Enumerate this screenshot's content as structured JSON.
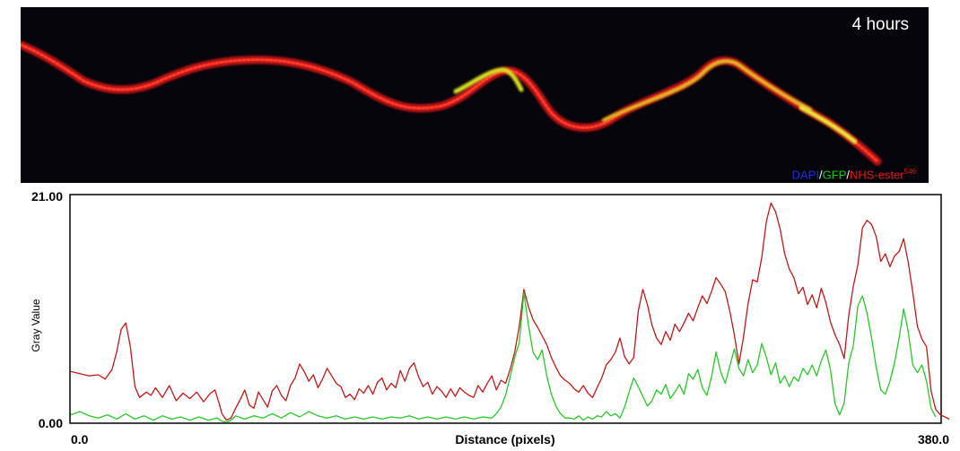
{
  "micrograph": {
    "timepoint_label": "4 hours",
    "legend": {
      "dapi": "DAPI",
      "gfp": "GFP",
      "nhs": "NHS-ester",
      "nhs_sup": "546",
      "sep": "/",
      "dapi_color": "#1c2ed6",
      "gfp_color": "#19c419",
      "nhs_color": "#e81818"
    }
  },
  "chart_data": {
    "type": "line",
    "xlabel": "Distance (pixels)",
    "ylabel": "Gray Value",
    "xlim": [
      0,
      380
    ],
    "ylim": [
      0,
      21
    ],
    "x_tick_labels": [
      "0.0",
      "380.0"
    ],
    "y_tick_labels": [
      "0.00",
      "21.00"
    ],
    "grid": false,
    "series": [
      {
        "color": "#c01818",
        "points": [
          [
            0,
            4.7
          ],
          [
            4,
            4.5
          ],
          [
            8,
            4.3
          ],
          [
            12,
            4.4
          ],
          [
            15,
            4.0
          ],
          [
            18,
            4.9
          ],
          [
            20,
            6.5
          ],
          [
            22,
            8.6
          ],
          [
            24,
            9.2
          ],
          [
            26,
            7.0
          ],
          [
            28,
            3.3
          ],
          [
            30,
            2.3
          ],
          [
            33,
            2.8
          ],
          [
            35,
            2.5
          ],
          [
            37,
            3.2
          ],
          [
            40,
            2.3
          ],
          [
            43,
            3.4
          ],
          [
            46,
            2.0
          ],
          [
            49,
            2.7
          ],
          [
            52,
            2.2
          ],
          [
            55,
            2.8
          ],
          [
            58,
            1.9
          ],
          [
            61,
            2.7
          ],
          [
            63,
            3.0
          ],
          [
            65,
            1.6
          ],
          [
            66,
            0.8
          ],
          [
            68,
            0.2
          ],
          [
            70,
            0.4
          ],
          [
            72,
            1.3
          ],
          [
            74,
            2.1
          ],
          [
            76,
            3.0
          ],
          [
            78,
            1.6
          ],
          [
            80,
            1.3
          ],
          [
            82,
            2.8
          ],
          [
            84,
            2.1
          ],
          [
            86,
            1.4
          ],
          [
            88,
            2.9
          ],
          [
            90,
            3.4
          ],
          [
            92,
            2.5
          ],
          [
            94,
            2.0
          ],
          [
            96,
            3.4
          ],
          [
            98,
            4.1
          ],
          [
            100,
            5.4
          ],
          [
            102,
            4.7
          ],
          [
            104,
            3.8
          ],
          [
            106,
            4.4
          ],
          [
            108,
            3.2
          ],
          [
            110,
            4.0
          ],
          [
            112,
            5.0
          ],
          [
            114,
            4.3
          ],
          [
            116,
            3.6
          ],
          [
            118,
            3.3
          ],
          [
            120,
            2.3
          ],
          [
            122,
            2.6
          ],
          [
            124,
            2.1
          ],
          [
            126,
            3.1
          ],
          [
            128,
            2.7
          ],
          [
            130,
            3.4
          ],
          [
            132,
            2.6
          ],
          [
            134,
            3.7
          ],
          [
            136,
            4.1
          ],
          [
            138,
            3.0
          ],
          [
            140,
            3.6
          ],
          [
            142,
            3.2
          ],
          [
            144,
            4.8
          ],
          [
            146,
            3.8
          ],
          [
            148,
            5.0
          ],
          [
            150,
            5.5
          ],
          [
            152,
            4.2
          ],
          [
            154,
            3.3
          ],
          [
            156,
            3.7
          ],
          [
            158,
            2.6
          ],
          [
            160,
            3.3
          ],
          [
            162,
            2.9
          ],
          [
            164,
            2.3
          ],
          [
            166,
            3.1
          ],
          [
            168,
            2.4
          ],
          [
            170,
            3.2
          ],
          [
            172,
            2.8
          ],
          [
            174,
            2.5
          ],
          [
            176,
            2.3
          ],
          [
            178,
            3.4
          ],
          [
            180,
            2.8
          ],
          [
            182,
            3.6
          ],
          [
            184,
            4.3
          ],
          [
            186,
            3.0
          ],
          [
            188,
            3.9
          ],
          [
            190,
            3.6
          ],
          [
            192,
            4.9
          ],
          [
            194,
            6.5
          ],
          [
            196,
            8.9
          ],
          [
            198,
            12.3
          ],
          [
            200,
            10.7
          ],
          [
            202,
            9.5
          ],
          [
            204,
            8.8
          ],
          [
            206,
            8.0
          ],
          [
            208,
            7.2
          ],
          [
            210,
            6.0
          ],
          [
            212,
            5.1
          ],
          [
            214,
            4.3
          ],
          [
            216,
            3.9
          ],
          [
            218,
            3.6
          ],
          [
            220,
            3.1
          ],
          [
            222,
            2.8
          ],
          [
            224,
            3.4
          ],
          [
            226,
            2.7
          ],
          [
            228,
            2.3
          ],
          [
            230,
            3.2
          ],
          [
            232,
            4.1
          ],
          [
            234,
            5.3
          ],
          [
            236,
            5.8
          ],
          [
            238,
            6.5
          ],
          [
            240,
            7.8
          ],
          [
            242,
            6.1
          ],
          [
            244,
            5.4
          ],
          [
            246,
            6.0
          ],
          [
            248,
            10.3
          ],
          [
            250,
            12.3
          ],
          [
            252,
            10.9
          ],
          [
            254,
            9.0
          ],
          [
            256,
            7.8
          ],
          [
            258,
            7.2
          ],
          [
            260,
            8.4
          ],
          [
            262,
            7.6
          ],
          [
            264,
            9.1
          ],
          [
            266,
            8.4
          ],
          [
            268,
            9.2
          ],
          [
            270,
            10.1
          ],
          [
            272,
            9.4
          ],
          [
            274,
            10.6
          ],
          [
            276,
            11.7
          ],
          [
            278,
            11.0
          ],
          [
            280,
            12.1
          ],
          [
            282,
            13.4
          ],
          [
            284,
            12.8
          ],
          [
            286,
            12.1
          ],
          [
            288,
            10.3
          ],
          [
            290,
            8.1
          ],
          [
            292,
            5.4
          ],
          [
            294,
            7.9
          ],
          [
            296,
            11.0
          ],
          [
            298,
            13.2
          ],
          [
            300,
            13.0
          ],
          [
            302,
            15.3
          ],
          [
            304,
            18.6
          ],
          [
            306,
            20.3
          ],
          [
            308,
            19.5
          ],
          [
            310,
            17.9
          ],
          [
            312,
            15.6
          ],
          [
            314,
            14.2
          ],
          [
            316,
            13.4
          ],
          [
            318,
            11.9
          ],
          [
            320,
            12.5
          ],
          [
            322,
            10.9
          ],
          [
            324,
            11.8
          ],
          [
            326,
            10.6
          ],
          [
            328,
            12.4
          ],
          [
            330,
            11.1
          ],
          [
            332,
            9.3
          ],
          [
            334,
            8.1
          ],
          [
            336,
            7.2
          ],
          [
            338,
            5.9
          ],
          [
            340,
            9.9
          ],
          [
            342,
            12.6
          ],
          [
            344,
            14.6
          ],
          [
            346,
            18.0
          ],
          [
            348,
            18.7
          ],
          [
            350,
            18.3
          ],
          [
            352,
            17.2
          ],
          [
            354,
            14.9
          ],
          [
            356,
            15.6
          ],
          [
            358,
            14.4
          ],
          [
            360,
            15.4
          ],
          [
            362,
            15.8
          ],
          [
            364,
            17.0
          ],
          [
            366,
            14.8
          ],
          [
            368,
            12.0
          ],
          [
            370,
            8.9
          ],
          [
            372,
            7.7
          ],
          [
            374,
            7.0
          ],
          [
            376,
            2.9
          ],
          [
            378,
            1.2
          ],
          [
            380,
            0.7
          ],
          [
            384,
            0.3
          ]
        ]
      },
      {
        "color": "#2bc42b",
        "points": [
          [
            0,
            0.7
          ],
          [
            4,
            1.0
          ],
          [
            8,
            0.6
          ],
          [
            12,
            0.4
          ],
          [
            16,
            0.7
          ],
          [
            20,
            0.3
          ],
          [
            24,
            0.8
          ],
          [
            28,
            0.3
          ],
          [
            32,
            0.6
          ],
          [
            36,
            0.2
          ],
          [
            40,
            0.6
          ],
          [
            44,
            0.3
          ],
          [
            48,
            0.5
          ],
          [
            52,
            0.2
          ],
          [
            56,
            0.5
          ],
          [
            60,
            0.2
          ],
          [
            64,
            0.4
          ],
          [
            66,
            0.1
          ],
          [
            68,
            0.0
          ],
          [
            70,
            0.2
          ],
          [
            72,
            0.6
          ],
          [
            76,
            0.3
          ],
          [
            80,
            0.6
          ],
          [
            84,
            0.4
          ],
          [
            88,
            0.8
          ],
          [
            92,
            0.4
          ],
          [
            96,
            0.9
          ],
          [
            100,
            0.5
          ],
          [
            104,
            1.0
          ],
          [
            108,
            0.6
          ],
          [
            112,
            0.4
          ],
          [
            116,
            0.6
          ],
          [
            120,
            0.3
          ],
          [
            124,
            0.5
          ],
          [
            128,
            0.3
          ],
          [
            132,
            0.5
          ],
          [
            136,
            0.3
          ],
          [
            140,
            0.5
          ],
          [
            144,
            0.4
          ],
          [
            148,
            0.6
          ],
          [
            152,
            0.3
          ],
          [
            156,
            0.5
          ],
          [
            160,
            0.3
          ],
          [
            164,
            0.5
          ],
          [
            168,
            0.3
          ],
          [
            172,
            0.5
          ],
          [
            176,
            0.3
          ],
          [
            180,
            0.5
          ],
          [
            184,
            0.4
          ],
          [
            186,
            0.8
          ],
          [
            188,
            1.4
          ],
          [
            190,
            2.5
          ],
          [
            192,
            4.2
          ],
          [
            194,
            6.0
          ],
          [
            196,
            7.4
          ],
          [
            198,
            12.0
          ],
          [
            200,
            9.0
          ],
          [
            202,
            6.5
          ],
          [
            204,
            5.8
          ],
          [
            206,
            6.7
          ],
          [
            208,
            4.3
          ],
          [
            210,
            2.6
          ],
          [
            212,
            1.5
          ],
          [
            214,
            0.8
          ],
          [
            216,
            0.4
          ],
          [
            218,
            0.4
          ],
          [
            220,
            0.3
          ],
          [
            222,
            0.6
          ],
          [
            224,
            0.2
          ],
          [
            226,
            0.5
          ],
          [
            228,
            0.3
          ],
          [
            230,
            0.6
          ],
          [
            232,
            0.5
          ],
          [
            234,
            1.0
          ],
          [
            236,
            0.6
          ],
          [
            238,
            0.8
          ],
          [
            240,
            0.4
          ],
          [
            242,
            1.4
          ],
          [
            244,
            2.8
          ],
          [
            246,
            4.1
          ],
          [
            248,
            3.3
          ],
          [
            250,
            2.4
          ],
          [
            252,
            1.5
          ],
          [
            254,
            2.0
          ],
          [
            256,
            3.0
          ],
          [
            258,
            2.6
          ],
          [
            260,
            3.5
          ],
          [
            262,
            2.2
          ],
          [
            264,
            2.8
          ],
          [
            266,
            3.5
          ],
          [
            268,
            2.6
          ],
          [
            270,
            4.5
          ],
          [
            272,
            4.0
          ],
          [
            274,
            4.9
          ],
          [
            276,
            3.2
          ],
          [
            278,
            2.5
          ],
          [
            280,
            4.2
          ],
          [
            282,
            6.5
          ],
          [
            284,
            4.7
          ],
          [
            286,
            3.6
          ],
          [
            288,
            5.2
          ],
          [
            290,
            6.8
          ],
          [
            292,
            5.0
          ],
          [
            294,
            4.3
          ],
          [
            296,
            5.8
          ],
          [
            298,
            4.6
          ],
          [
            300,
            5.3
          ],
          [
            302,
            7.3
          ],
          [
            304,
            6.0
          ],
          [
            306,
            4.4
          ],
          [
            308,
            5.5
          ],
          [
            310,
            3.6
          ],
          [
            312,
            4.3
          ],
          [
            314,
            3.3
          ],
          [
            316,
            4.2
          ],
          [
            318,
            3.8
          ],
          [
            320,
            5.0
          ],
          [
            322,
            4.4
          ],
          [
            324,
            5.3
          ],
          [
            326,
            4.3
          ],
          [
            328,
            5.7
          ],
          [
            330,
            6.7
          ],
          [
            332,
            4.9
          ],
          [
            334,
            1.7
          ],
          [
            336,
            0.7
          ],
          [
            338,
            1.8
          ],
          [
            340,
            5.5
          ],
          [
            342,
            7.1
          ],
          [
            344,
            10.8
          ],
          [
            346,
            11.7
          ],
          [
            348,
            10.1
          ],
          [
            350,
            7.8
          ],
          [
            352,
            5.1
          ],
          [
            354,
            3.0
          ],
          [
            356,
            2.6
          ],
          [
            358,
            3.8
          ],
          [
            360,
            5.5
          ],
          [
            362,
            7.8
          ],
          [
            364,
            10.5
          ],
          [
            366,
            8.4
          ],
          [
            368,
            5.3
          ],
          [
            370,
            4.6
          ],
          [
            372,
            5.3
          ],
          [
            374,
            3.8
          ],
          [
            376,
            1.3
          ],
          [
            378,
            0.5
          ]
        ]
      }
    ]
  }
}
